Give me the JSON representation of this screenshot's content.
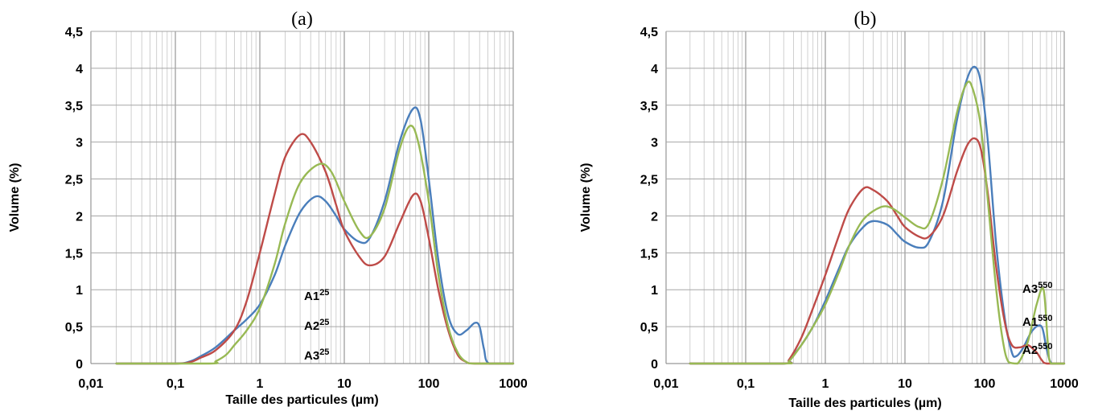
{
  "chart_data": [
    {
      "type": "line",
      "panel_label": "(a)",
      "xlabel": "Taille des particules (µm)",
      "ylabel": "Volume (%)",
      "x_scale": "log",
      "xlim": [
        0.01,
        1000
      ],
      "ylim": [
        0,
        4.5
      ],
      "x_ticks": [
        0.01,
        0.1,
        1,
        10,
        100,
        1000
      ],
      "x_tick_labels": [
        "0,01",
        "0,1",
        "1",
        "10",
        "100",
        "1000"
      ],
      "y_ticks": [
        0,
        0.5,
        1,
        1.5,
        2,
        2.5,
        3,
        3.5,
        4,
        4.5
      ],
      "y_tick_labels": [
        "0",
        "0,5",
        "1",
        "1,5",
        "2",
        "2,5",
        "3",
        "3,5",
        "4",
        "4,5"
      ],
      "grid": true,
      "series": [
        {
          "name": "A1",
          "superscript": "25",
          "color": "#4a7ebb",
          "points": [
            [
              0.02,
              0
            ],
            [
              0.1,
              0
            ],
            [
              0.15,
              0.03
            ],
            [
              0.2,
              0.1
            ],
            [
              0.3,
              0.22
            ],
            [
              0.5,
              0.45
            ],
            [
              0.7,
              0.6
            ],
            [
              1,
              0.8
            ],
            [
              1.5,
              1.2
            ],
            [
              2,
              1.6
            ],
            [
              3,
              2.05
            ],
            [
              4.5,
              2.26
            ],
            [
              6,
              2.2
            ],
            [
              8,
              2.0
            ],
            [
              10,
              1.82
            ],
            [
              15,
              1.65
            ],
            [
              20,
              1.7
            ],
            [
              30,
              2.2
            ],
            [
              45,
              3.0
            ],
            [
              65,
              3.45
            ],
            [
              80,
              3.3
            ],
            [
              100,
              2.5
            ],
            [
              130,
              1.4
            ],
            [
              170,
              0.65
            ],
            [
              220,
              0.4
            ],
            [
              280,
              0.45
            ],
            [
              350,
              0.55
            ],
            [
              400,
              0.5
            ],
            [
              450,
              0.2
            ],
            [
              520,
              0
            ],
            [
              1000,
              0
            ]
          ]
        },
        {
          "name": "A2",
          "superscript": "25",
          "color": "#be4b48",
          "points": [
            [
              0.02,
              0
            ],
            [
              0.1,
              0
            ],
            [
              0.15,
              0.02
            ],
            [
              0.2,
              0.08
            ],
            [
              0.3,
              0.18
            ],
            [
              0.5,
              0.45
            ],
            [
              0.7,
              0.85
            ],
            [
              1,
              1.5
            ],
            [
              1.5,
              2.3
            ],
            [
              2,
              2.8
            ],
            [
              3,
              3.1
            ],
            [
              4,
              3.0
            ],
            [
              6,
              2.6
            ],
            [
              8,
              2.15
            ],
            [
              10,
              1.8
            ],
            [
              15,
              1.45
            ],
            [
              20,
              1.33
            ],
            [
              30,
              1.45
            ],
            [
              45,
              1.9
            ],
            [
              65,
              2.28
            ],
            [
              80,
              2.2
            ],
            [
              100,
              1.7
            ],
            [
              130,
              1.0
            ],
            [
              170,
              0.45
            ],
            [
              220,
              0.12
            ],
            [
              280,
              0.02
            ],
            [
              350,
              0
            ],
            [
              1000,
              0
            ]
          ]
        },
        {
          "name": "A3",
          "superscript": "25",
          "color": "#98b954",
          "points": [
            [
              0.02,
              0
            ],
            [
              0.25,
              0
            ],
            [
              0.3,
              0.03
            ],
            [
              0.4,
              0.12
            ],
            [
              0.5,
              0.25
            ],
            [
              0.7,
              0.45
            ],
            [
              1,
              0.75
            ],
            [
              1.5,
              1.35
            ],
            [
              2,
              1.9
            ],
            [
              3,
              2.45
            ],
            [
              5,
              2.7
            ],
            [
              7,
              2.6
            ],
            [
              10,
              2.2
            ],
            [
              15,
              1.8
            ],
            [
              20,
              1.72
            ],
            [
              30,
              2.1
            ],
            [
              45,
              2.9
            ],
            [
              60,
              3.22
            ],
            [
              75,
              3.0
            ],
            [
              100,
              2.2
            ],
            [
              130,
              1.2
            ],
            [
              170,
              0.5
            ],
            [
              220,
              0.15
            ],
            [
              280,
              0.02
            ],
            [
              350,
              0
            ],
            [
              1000,
              0
            ]
          ]
        }
      ]
    },
    {
      "type": "line",
      "panel_label": "(b)",
      "xlabel": "Taille des particules (µm)",
      "ylabel": "Volume (%)",
      "x_scale": "log",
      "xlim": [
        0.01,
        1000
      ],
      "ylim": [
        0,
        4.5
      ],
      "x_ticks": [
        0.01,
        0.1,
        1,
        10,
        100,
        1000
      ],
      "x_tick_labels": [
        "0,01",
        "0,1",
        "1",
        "10",
        "100",
        "1000"
      ],
      "y_ticks": [
        0,
        0.5,
        1,
        1.5,
        2,
        2.5,
        3,
        3.5,
        4,
        4.5
      ],
      "y_tick_labels": [
        "0",
        "0,5",
        "1",
        "1,5",
        "2",
        "2,5",
        "3",
        "3,5",
        "4",
        "4,5"
      ],
      "grid": true,
      "series": [
        {
          "name": "A1",
          "superscript": "550",
          "color": "#4a7ebb",
          "points": [
            [
              0.02,
              0
            ],
            [
              0.3,
              0
            ],
            [
              0.35,
              0.05
            ],
            [
              0.5,
              0.25
            ],
            [
              0.7,
              0.5
            ],
            [
              1,
              0.85
            ],
            [
              1.5,
              1.3
            ],
            [
              2,
              1.6
            ],
            [
              3,
              1.85
            ],
            [
              4,
              1.93
            ],
            [
              6,
              1.88
            ],
            [
              8,
              1.75
            ],
            [
              10,
              1.65
            ],
            [
              15,
              1.57
            ],
            [
              20,
              1.65
            ],
            [
              30,
              2.2
            ],
            [
              45,
              3.3
            ],
            [
              60,
              3.85
            ],
            [
              75,
              4.02
            ],
            [
              90,
              3.8
            ],
            [
              110,
              3.0
            ],
            [
              140,
              1.6
            ],
            [
              180,
              0.6
            ],
            [
              220,
              0.15
            ],
            [
              250,
              0.1
            ],
            [
              300,
              0.2
            ],
            [
              400,
              0.45
            ],
            [
              520,
              0.5
            ],
            [
              600,
              0.2
            ],
            [
              700,
              0
            ],
            [
              1000,
              0
            ]
          ]
        },
        {
          "name": "A2",
          "superscript": "550",
          "color": "#be4b48",
          "points": [
            [
              0.02,
              0
            ],
            [
              0.3,
              0
            ],
            [
              0.35,
              0.05
            ],
            [
              0.5,
              0.35
            ],
            [
              0.7,
              0.75
            ],
            [
              1,
              1.2
            ],
            [
              1.5,
              1.75
            ],
            [
              2,
              2.1
            ],
            [
              3,
              2.37
            ],
            [
              4,
              2.35
            ],
            [
              6,
              2.2
            ],
            [
              8,
              2.0
            ],
            [
              10,
              1.85
            ],
            [
              15,
              1.72
            ],
            [
              20,
              1.72
            ],
            [
              30,
              2.0
            ],
            [
              45,
              2.6
            ],
            [
              60,
              2.95
            ],
            [
              75,
              3.05
            ],
            [
              90,
              2.9
            ],
            [
              110,
              2.3
            ],
            [
              140,
              1.3
            ],
            [
              180,
              0.55
            ],
            [
              220,
              0.25
            ],
            [
              280,
              0.22
            ],
            [
              350,
              0.25
            ],
            [
              450,
              0.15
            ],
            [
              520,
              0.05
            ],
            [
              600,
              0
            ],
            [
              1000,
              0
            ]
          ]
        },
        {
          "name": "A3",
          "superscript": "550",
          "color": "#98b954",
          "points": [
            [
              0.02,
              0
            ],
            [
              0.3,
              0
            ],
            [
              0.35,
              0.03
            ],
            [
              0.5,
              0.25
            ],
            [
              0.7,
              0.5
            ],
            [
              1,
              0.8
            ],
            [
              1.5,
              1.25
            ],
            [
              2,
              1.6
            ],
            [
              3,
              1.95
            ],
            [
              5,
              2.12
            ],
            [
              7,
              2.1
            ],
            [
              10,
              1.98
            ],
            [
              15,
              1.85
            ],
            [
              20,
              1.9
            ],
            [
              30,
              2.5
            ],
            [
              45,
              3.4
            ],
            [
              60,
              3.8
            ],
            [
              72,
              3.7
            ],
            [
              90,
              3.2
            ],
            [
              110,
              2.2
            ],
            [
              140,
              1.0
            ],
            [
              170,
              0.3
            ],
            [
              200,
              0.02
            ],
            [
              260,
              0
            ],
            [
              350,
              0.3
            ],
            [
              450,
              0.8
            ],
            [
              550,
              1.0
            ],
            [
              620,
              0.3
            ],
            [
              680,
              0
            ],
            [
              1000,
              0
            ]
          ]
        }
      ]
    }
  ]
}
